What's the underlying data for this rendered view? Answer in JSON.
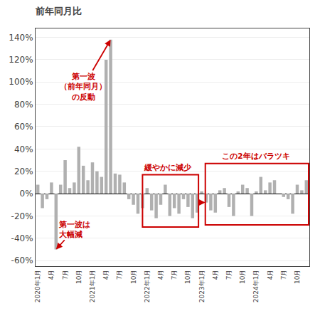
{
  "chart_data": {
    "type": "bar",
    "title": "前年同月比",
    "categories": [
      "2020年1月",
      null,
      null,
      "4月",
      null,
      null,
      "7月",
      null,
      null,
      "10月",
      null,
      null,
      "2021年1月",
      null,
      null,
      "4月",
      null,
      null,
      "7月",
      null,
      null,
      "10月",
      null,
      null,
      "2022年1月",
      null,
      null,
      "4月",
      null,
      null,
      "7月",
      null,
      null,
      "10月",
      null,
      null,
      "2023年1月",
      null,
      null,
      "4月",
      null,
      null,
      "7月",
      null,
      null,
      "10月",
      null,
      null,
      "2024年1月",
      null,
      null,
      "4月",
      null,
      null,
      "7月",
      null,
      null,
      "10月",
      null,
      null
    ],
    "values": [
      8,
      -13,
      -5,
      10,
      -50,
      8,
      30,
      5,
      10,
      42,
      25,
      12,
      28,
      20,
      15,
      120,
      138,
      18,
      17,
      10,
      -5,
      -10,
      -18,
      -13,
      5,
      -15,
      -22,
      -10,
      8,
      -20,
      -13,
      -18,
      -5,
      -12,
      -22,
      -17,
      2,
      -8,
      -15,
      -17,
      3,
      5,
      -12,
      -20,
      2,
      8,
      5,
      -20,
      2,
      15,
      3,
      10,
      12,
      0,
      -3,
      -5,
      -18,
      8,
      3,
      12
    ],
    "color": "#b0b0b0",
    "ylim": [
      -65,
      148
    ],
    "yticks": [
      {
        "value": -60,
        "label": "-60%"
      },
      {
        "value": -40,
        "label": "-40%"
      },
      {
        "value": -20,
        "label": "-20%"
      },
      {
        "value": 0,
        "label": "0%"
      },
      {
        "value": 20,
        "label": "20%"
      },
      {
        "value": 40,
        "label": "40%"
      },
      {
        "value": 60,
        "label": "60%"
      },
      {
        "value": 80,
        "label": "80%"
      },
      {
        "value": 100,
        "label": "100%"
      },
      {
        "value": 120,
        "label": "120%"
      },
      {
        "value": 140,
        "label": "140%"
      }
    ],
    "grid": true,
    "annotations": [
      {
        "text": "第一波は\n大幅減",
        "color": "#cc0000"
      },
      {
        "text": "第一波\n（前年同月）\nの反動",
        "color": "#cc0000"
      },
      {
        "text": "緩やかに減少",
        "color": "#cc0000"
      },
      {
        "text": "この2年はバラツキ",
        "color": "#cc0000"
      }
    ]
  }
}
